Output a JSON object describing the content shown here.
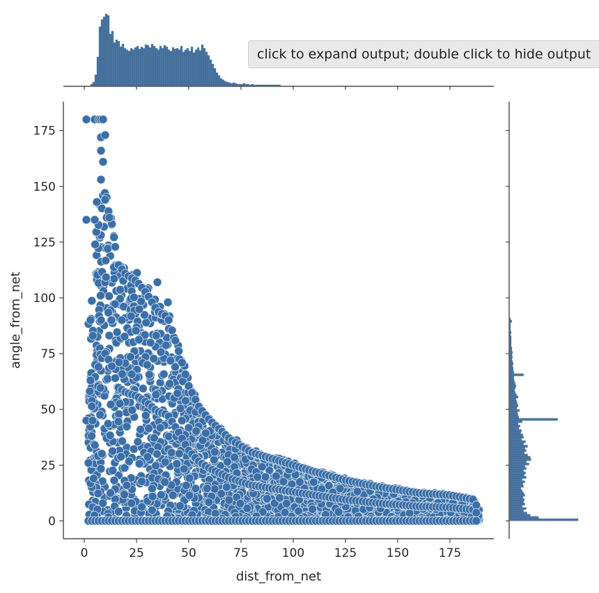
{
  "tooltip": {
    "text": "click to expand output; double click to hide output"
  },
  "chart_data": {
    "type": "scatter",
    "subtype": "jointplot",
    "xlabel": "dist_from_net",
    "ylabel": "angle_from_net",
    "xlim": [
      -10,
      196
    ],
    "ylim": [
      -8,
      188
    ],
    "x_ticks": [
      0,
      25,
      50,
      75,
      100,
      125,
      150,
      175
    ],
    "y_ticks": [
      0,
      25,
      50,
      75,
      100,
      125,
      150,
      175
    ],
    "grid": false,
    "point_color": "#3a6fa8",
    "point_edge_color": "#dbe4ee",
    "hist_color": "#4b76a2",
    "envelope": [
      {
        "x": 3,
        "y": 92
      },
      {
        "x": 5,
        "y": 128
      },
      {
        "x": 8,
        "y": 145
      },
      {
        "x": 10,
        "y": 150
      },
      {
        "x": 13,
        "y": 140
      },
      {
        "x": 16,
        "y": 120
      },
      {
        "x": 20,
        "y": 115
      },
      {
        "x": 25,
        "y": 112
      },
      {
        "x": 30,
        "y": 106
      },
      {
        "x": 35,
        "y": 98
      },
      {
        "x": 40,
        "y": 95
      },
      {
        "x": 45,
        "y": 80
      },
      {
        "x": 50,
        "y": 63
      },
      {
        "x": 55,
        "y": 53
      },
      {
        "x": 60,
        "y": 47
      },
      {
        "x": 70,
        "y": 38
      },
      {
        "x": 80,
        "y": 32
      },
      {
        "x": 90,
        "y": 29
      },
      {
        "x": 100,
        "y": 26
      },
      {
        "x": 110,
        "y": 23
      },
      {
        "x": 125,
        "y": 19
      },
      {
        "x": 140,
        "y": 16
      },
      {
        "x": 160,
        "y": 13
      },
      {
        "x": 175,
        "y": 12
      },
      {
        "x": 186,
        "y": 10
      },
      {
        "x": 189,
        "y": 5
      },
      {
        "x": 189,
        "y": 0
      }
    ],
    "outlier_points": [
      {
        "x": 1,
        "y": 180
      },
      {
        "x": 5,
        "y": 180
      },
      {
        "x": 7,
        "y": 180
      },
      {
        "x": 8,
        "y": 180
      },
      {
        "x": 9,
        "y": 180
      },
      {
        "x": 8,
        "y": 172
      },
      {
        "x": 10,
        "y": 173
      },
      {
        "x": 8,
        "y": 166
      },
      {
        "x": 9,
        "y": 161
      },
      {
        "x": 8,
        "y": 153
      },
      {
        "x": 1,
        "y": 135
      },
      {
        "x": 5,
        "y": 135
      },
      {
        "x": 6,
        "y": 143
      },
      {
        "x": 12,
        "y": 136
      },
      {
        "x": 3,
        "y": 90
      },
      {
        "x": 8,
        "y": 90
      },
      {
        "x": 13,
        "y": 90
      },
      {
        "x": 18,
        "y": 90
      },
      {
        "x": 1,
        "y": 45
      },
      {
        "x": 4,
        "y": 45
      },
      {
        "x": 3,
        "y": 63
      },
      {
        "x": 2,
        "y": 26
      },
      {
        "x": 35,
        "y": 107
      },
      {
        "x": 40,
        "y": 98
      }
    ],
    "top_hist": {
      "bin_width": 1,
      "x_start": 3,
      "heights": [
        2,
        5,
        15,
        40,
        82,
        92,
        96,
        100,
        98,
        72,
        76,
        60,
        64,
        62,
        54,
        58,
        52,
        50,
        48,
        52,
        50,
        53,
        55,
        51,
        54,
        52,
        57,
        56,
        53,
        58,
        55,
        52,
        50,
        55,
        52,
        56,
        54,
        50,
        48,
        53,
        51,
        52,
        50,
        55,
        47,
        50,
        52,
        48,
        54,
        46,
        50,
        53,
        49,
        57,
        52,
        47,
        42,
        36,
        30,
        24,
        18,
        14,
        10,
        8,
        6,
        5,
        4,
        3,
        4,
        3,
        2,
        2,
        2,
        3,
        2,
        2,
        1,
        2,
        1,
        1,
        1,
        1,
        1,
        1,
        1,
        1,
        1,
        1,
        1,
        1,
        1
      ]
    },
    "right_hist": {
      "bin_width": 1,
      "y_start": 0,
      "widths": [
        100,
        42,
        30,
        25,
        20,
        24,
        18,
        22,
        20,
        21,
        19,
        22,
        20,
        18,
        16,
        20,
        19,
        22,
        18,
        24,
        21,
        23,
        20,
        24,
        22,
        28,
        24,
        31,
        30,
        26,
        21,
        24,
        22,
        26,
        20,
        23,
        17,
        20,
        19,
        16,
        17,
        13,
        15,
        12,
        18,
        70,
        13,
        12,
        11,
        14,
        10,
        12,
        11,
        10,
        9,
        12,
        10,
        8,
        7,
        8,
        9,
        8,
        7,
        6,
        6,
        20,
        6,
        5,
        5,
        4,
        5,
        4,
        3,
        4,
        3,
        4,
        3,
        3,
        2,
        2,
        2,
        2,
        2,
        1,
        2,
        1,
        1,
        1,
        1,
        3,
        1
      ]
    }
  }
}
